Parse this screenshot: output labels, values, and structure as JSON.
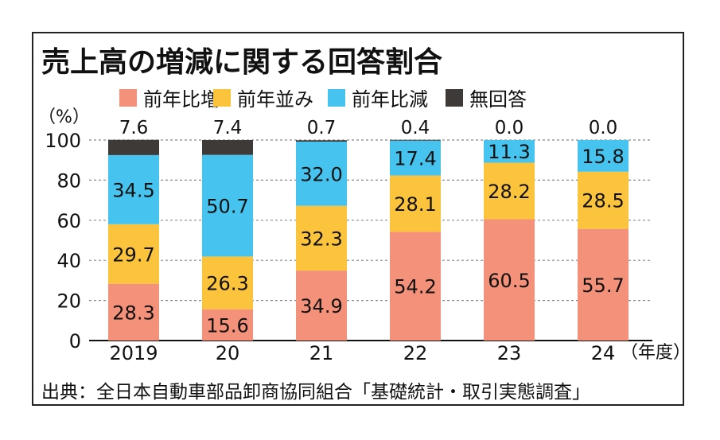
{
  "chart_data": {
    "type": "bar",
    "stacked": true,
    "title": "売上高の増減に関する回答割合",
    "ylabel": "（%）",
    "xlabel_suffix": "（年度）",
    "ylim": [
      0,
      100
    ],
    "yticks": [
      "0",
      "20",
      "40",
      "60",
      "80",
      "100"
    ],
    "grid": true,
    "legend_position": "top",
    "categories": [
      "2019",
      "20",
      "21",
      "22",
      "23",
      "24"
    ],
    "series": [
      {
        "name": "前年比増",
        "color": "#f4917b",
        "values": [
          28.3,
          15.6,
          34.9,
          54.2,
          60.5,
          55.7
        ]
      },
      {
        "name": "前年並み",
        "color": "#fcc43c",
        "values": [
          29.7,
          26.3,
          32.3,
          28.1,
          28.2,
          28.5
        ]
      },
      {
        "name": "前年比減",
        "color": "#46c4ef",
        "values": [
          34.5,
          50.7,
          32.0,
          17.4,
          11.3,
          15.8
        ]
      },
      {
        "name": "無回答",
        "color": "#3e3a37",
        "values": [
          7.6,
          7.4,
          0.7,
          0.4,
          0.0,
          0.0
        ]
      }
    ],
    "labels": [
      [
        "28.3",
        "15.6",
        "34.9",
        "54.2",
        "60.5",
        "55.7"
      ],
      [
        "29.7",
        "26.3",
        "32.3",
        "28.1",
        "28.2",
        "28.5"
      ],
      [
        "34.5",
        "50.7",
        "32.0",
        "17.4",
        "11.3",
        "15.8"
      ],
      [
        "7.6",
        "7.4",
        "0.7",
        "0.4",
        "0.0",
        "0.0"
      ]
    ],
    "source": "出典：全日本自動車部品卸商協同組合「基礎統計・取引実態調査」"
  }
}
